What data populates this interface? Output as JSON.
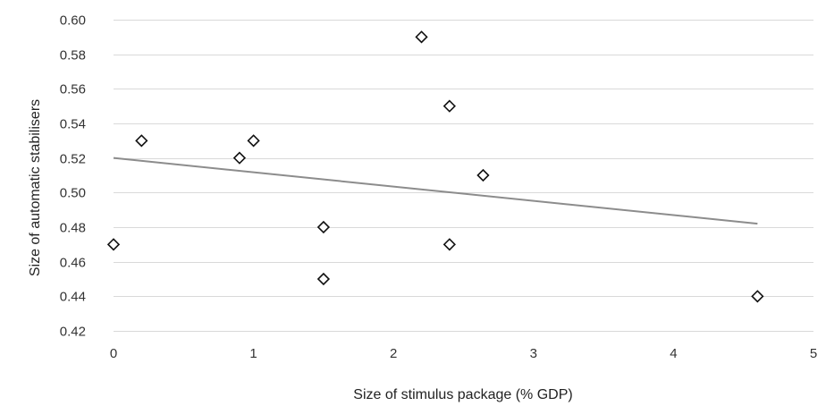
{
  "chart_data": {
    "type": "scatter",
    "title": "",
    "xlabel": "Size of stimulus package (% GDP)",
    "ylabel": "Size of automatic stabilisers",
    "xlim": [
      0,
      5
    ],
    "ylim": [
      0.42,
      0.6
    ],
    "x_ticks": [
      0,
      1,
      2,
      3,
      4,
      5
    ],
    "x_tick_labels": [
      "0",
      "1",
      "2",
      "3",
      "4",
      "5"
    ],
    "y_ticks": [
      0.42,
      0.44,
      0.46,
      0.48,
      0.5,
      0.52,
      0.54,
      0.56,
      0.58,
      0.6
    ],
    "y_tick_labels": [
      "0.42",
      "0.44",
      "0.46",
      "0.48",
      "0.50",
      "0.52",
      "0.54",
      "0.56",
      "0.58",
      "0.60"
    ],
    "grid": "horizontal",
    "legend": "none",
    "series": [
      {
        "marker": "diamond-open",
        "color": "#111111",
        "points": [
          {
            "x": 0.0,
            "y": 0.47
          },
          {
            "x": 0.2,
            "y": 0.53
          },
          {
            "x": 0.9,
            "y": 0.52
          },
          {
            "x": 1.0,
            "y": 0.53
          },
          {
            "x": 1.5,
            "y": 0.48
          },
          {
            "x": 1.5,
            "y": 0.45
          },
          {
            "x": 2.2,
            "y": 0.59
          },
          {
            "x": 2.4,
            "y": 0.55
          },
          {
            "x": 2.4,
            "y": 0.47
          },
          {
            "x": 2.64,
            "y": 0.51
          },
          {
            "x": 4.6,
            "y": 0.44
          }
        ]
      }
    ],
    "trendline": {
      "type": "linear",
      "color": "#8c8c8c",
      "start": {
        "x": 0.0,
        "y": 0.52
      },
      "end": {
        "x": 4.6,
        "y": 0.482
      }
    },
    "grid_color": "#d9d9d9"
  }
}
